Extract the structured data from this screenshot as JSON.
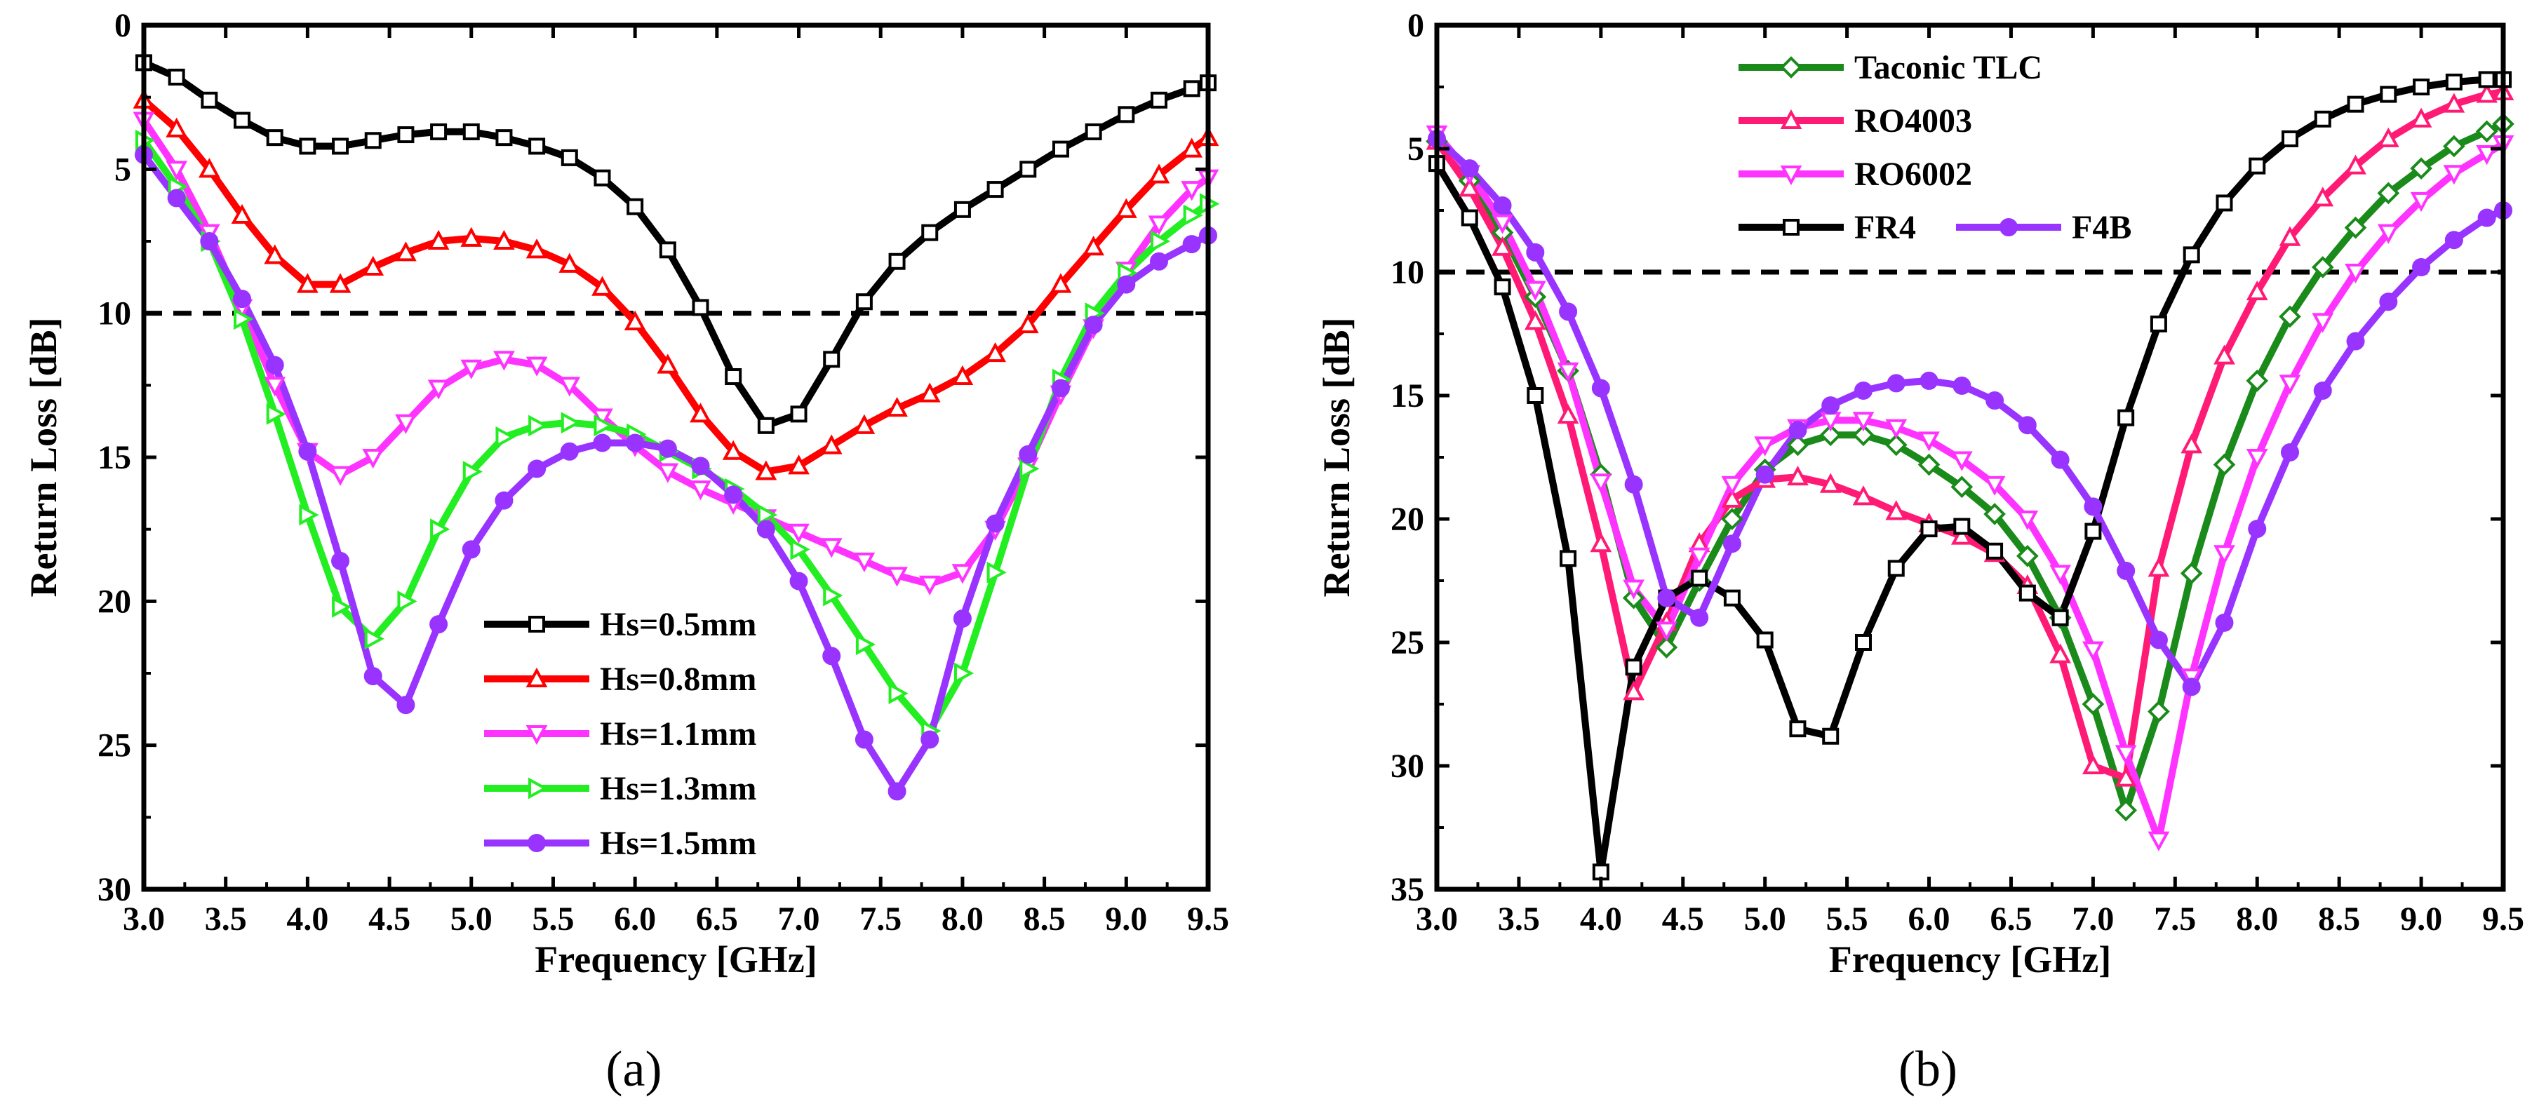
{
  "chart_data": [
    {
      "type": "line",
      "caption": "(a)",
      "xlabel": "Frequency [GHz]",
      "ylabel": "Return Loss [dB]",
      "xlim": [
        3.0,
        9.5
      ],
      "ylim": [
        0,
        30
      ],
      "y_inverted": true,
      "xticks": [
        "3.0",
        "3.5",
        "4.0",
        "4.5",
        "5.0",
        "5.5",
        "6.0",
        "6.5",
        "7.0",
        "7.5",
        "8.0",
        "8.5",
        "9.0",
        "9.5"
      ],
      "yticks": [
        "0",
        "5",
        "10",
        "15",
        "20",
        "25",
        "30"
      ],
      "reference_line": {
        "y": 10,
        "style": "dashed"
      },
      "legend_position": "bottom-center",
      "series": [
        {
          "name": "Hs=0.5mm",
          "color": "#000000",
          "marker": "square",
          "x": [
            3.0,
            3.2,
            3.4,
            3.6,
            3.8,
            4.0,
            4.2,
            4.4,
            4.6,
            4.8,
            5.0,
            5.2,
            5.4,
            5.6,
            5.8,
            6.0,
            6.2,
            6.4,
            6.6,
            6.8,
            7.0,
            7.2,
            7.4,
            7.6,
            7.8,
            8.0,
            8.2,
            8.4,
            8.6,
            8.8,
            9.0,
            9.2,
            9.4,
            9.5
          ],
          "y": [
            1.3,
            1.8,
            2.6,
            3.3,
            3.9,
            4.2,
            4.2,
            4.0,
            3.8,
            3.7,
            3.7,
            3.9,
            4.2,
            4.6,
            5.3,
            6.3,
            7.8,
            9.8,
            12.2,
            13.9,
            13.5,
            11.6,
            9.6,
            8.2,
            7.2,
            6.4,
            5.7,
            5.0,
            4.3,
            3.7,
            3.1,
            2.6,
            2.2,
            2.0
          ]
        },
        {
          "name": "Hs=0.8mm",
          "color": "#ff0000",
          "marker": "triangle-up",
          "x": [
            3.0,
            3.2,
            3.4,
            3.6,
            3.8,
            4.0,
            4.2,
            4.4,
            4.6,
            4.8,
            5.0,
            5.2,
            5.4,
            5.6,
            5.8,
            6.0,
            6.2,
            6.4,
            6.6,
            6.8,
            7.0,
            7.2,
            7.4,
            7.6,
            7.8,
            8.0,
            8.2,
            8.4,
            8.6,
            8.8,
            9.0,
            9.2,
            9.4,
            9.5
          ],
          "y": [
            2.6,
            3.6,
            5.0,
            6.6,
            8.0,
            9.0,
            9.0,
            8.4,
            7.9,
            7.5,
            7.4,
            7.5,
            7.8,
            8.3,
            9.1,
            10.3,
            11.8,
            13.5,
            14.8,
            15.5,
            15.3,
            14.6,
            13.9,
            13.3,
            12.8,
            12.2,
            11.4,
            10.4,
            9.0,
            7.7,
            6.4,
            5.2,
            4.3,
            3.9
          ]
        },
        {
          "name": "Hs=1.1mm",
          "color": "#ff33ff",
          "marker": "triangle-down",
          "x": [
            3.0,
            3.2,
            3.4,
            3.6,
            3.8,
            4.0,
            4.2,
            4.4,
            4.6,
            4.8,
            5.0,
            5.2,
            5.4,
            5.6,
            5.8,
            6.0,
            6.2,
            6.4,
            6.6,
            6.8,
            7.0,
            7.2,
            7.4,
            7.6,
            7.8,
            8.0,
            8.2,
            8.4,
            8.6,
            8.8,
            9.0,
            9.2,
            9.4,
            9.5
          ],
          "y": [
            3.3,
            5.0,
            7.2,
            9.8,
            12.5,
            14.8,
            15.6,
            15.0,
            13.8,
            12.6,
            11.9,
            11.6,
            11.8,
            12.5,
            13.6,
            14.6,
            15.5,
            16.1,
            16.6,
            17.1,
            17.6,
            18.1,
            18.6,
            19.1,
            19.4,
            19.0,
            17.5,
            15.3,
            12.8,
            10.5,
            8.5,
            6.9,
            5.7,
            5.3
          ]
        },
        {
          "name": "Hs=1.3mm",
          "color": "#22ee22",
          "marker": "triangle-right",
          "x": [
            3.0,
            3.2,
            3.4,
            3.6,
            3.8,
            4.0,
            4.2,
            4.4,
            4.6,
            4.8,
            5.0,
            5.2,
            5.4,
            5.6,
            5.8,
            6.0,
            6.2,
            6.4,
            6.6,
            6.8,
            7.0,
            7.2,
            7.4,
            7.6,
            7.8,
            8.0,
            8.2,
            8.4,
            8.6,
            8.8,
            9.0,
            9.2,
            9.4,
            9.5
          ],
          "y": [
            4.0,
            5.6,
            7.5,
            10.2,
            13.5,
            17.0,
            20.2,
            21.3,
            20.0,
            17.5,
            15.5,
            14.3,
            13.9,
            13.8,
            13.9,
            14.2,
            14.8,
            15.4,
            16.1,
            17.0,
            18.2,
            19.8,
            21.5,
            23.2,
            24.5,
            22.5,
            19.0,
            15.4,
            12.3,
            10.0,
            8.6,
            7.5,
            6.6,
            6.2
          ]
        },
        {
          "name": "Hs=1.5mm",
          "color": "#9933ff",
          "marker": "circle",
          "x": [
            3.0,
            3.2,
            3.4,
            3.6,
            3.8,
            4.0,
            4.2,
            4.4,
            4.6,
            4.8,
            5.0,
            5.2,
            5.4,
            5.6,
            5.8,
            6.0,
            6.2,
            6.4,
            6.6,
            6.8,
            7.0,
            7.2,
            7.4,
            7.6,
            7.8,
            8.0,
            8.2,
            8.4,
            8.6,
            8.8,
            9.0,
            9.2,
            9.4,
            9.5
          ],
          "y": [
            4.5,
            6.0,
            7.5,
            9.5,
            11.8,
            14.8,
            18.6,
            22.6,
            23.6,
            20.8,
            18.2,
            16.5,
            15.4,
            14.8,
            14.5,
            14.5,
            14.7,
            15.3,
            16.3,
            17.5,
            19.3,
            21.9,
            24.8,
            26.6,
            24.8,
            20.6,
            17.3,
            14.9,
            12.6,
            10.4,
            9.0,
            8.2,
            7.6,
            7.3
          ]
        }
      ]
    },
    {
      "type": "line",
      "caption": "(b)",
      "xlabel": "Frequency [GHz]",
      "ylabel": "Return Loss [dB]",
      "xlim": [
        3.0,
        9.5
      ],
      "ylim": [
        0,
        35
      ],
      "y_inverted": true,
      "xticks": [
        "3.0",
        "3.5",
        "4.0",
        "4.5",
        "5.0",
        "5.5",
        "6.0",
        "6.5",
        "7.0",
        "7.5",
        "8.0",
        "8.5",
        "9.0",
        "9.5"
      ],
      "yticks": [
        "0",
        "5",
        "10",
        "15",
        "20",
        "25",
        "30",
        "35"
      ],
      "reference_line": {
        "y": 10,
        "style": "dashed"
      },
      "legend_position": "top-left",
      "series": [
        {
          "name": "Taconic TLC",
          "color": "#1a8a1a",
          "marker": "diamond",
          "x": [
            3.0,
            3.2,
            3.4,
            3.6,
            3.8,
            4.0,
            4.2,
            4.4,
            4.6,
            4.8,
            5.0,
            5.2,
            5.4,
            5.6,
            5.8,
            6.0,
            6.2,
            6.4,
            6.6,
            6.8,
            7.0,
            7.2,
            7.4,
            7.6,
            7.8,
            8.0,
            8.2,
            8.4,
            8.6,
            8.8,
            9.0,
            9.2,
            9.4,
            9.5
          ],
          "y": [
            4.7,
            6.3,
            8.4,
            11.0,
            14.0,
            18.2,
            23.2,
            25.2,
            22.5,
            20.0,
            18.0,
            17.0,
            16.6,
            16.6,
            17.0,
            17.8,
            18.7,
            19.8,
            21.5,
            24.0,
            27.5,
            31.8,
            27.8,
            22.2,
            17.8,
            14.4,
            11.8,
            9.8,
            8.2,
            6.8,
            5.8,
            4.9,
            4.3,
            4.0
          ]
        },
        {
          "name": "RO4003",
          "color": "#ff1a75",
          "marker": "triangle-up",
          "x": [
            3.0,
            3.2,
            3.4,
            3.6,
            3.8,
            4.0,
            4.2,
            4.4,
            4.6,
            4.8,
            5.0,
            5.2,
            5.4,
            5.6,
            5.8,
            6.0,
            6.2,
            6.4,
            6.6,
            6.8,
            7.0,
            7.2,
            7.4,
            7.6,
            7.8,
            8.0,
            8.2,
            8.4,
            8.6,
            8.8,
            9.0,
            9.2,
            9.4,
            9.5
          ],
          "y": [
            4.7,
            6.6,
            9.0,
            12.0,
            15.8,
            21.0,
            27.0,
            24.2,
            21.0,
            19.2,
            18.4,
            18.3,
            18.6,
            19.1,
            19.7,
            20.2,
            20.7,
            21.4,
            22.7,
            25.5,
            30.0,
            30.5,
            22.0,
            17.0,
            13.4,
            10.8,
            8.6,
            7.0,
            5.7,
            4.6,
            3.8,
            3.2,
            2.8,
            2.7
          ]
        },
        {
          "name": "RO6002",
          "color": "#ff33ff",
          "marker": "triangle-down",
          "x": [
            3.0,
            3.2,
            3.4,
            3.6,
            3.8,
            4.0,
            4.2,
            4.4,
            4.6,
            4.8,
            5.0,
            5.2,
            5.4,
            5.6,
            5.8,
            6.0,
            6.2,
            6.4,
            6.6,
            6.8,
            7.0,
            7.2,
            7.4,
            7.6,
            7.8,
            8.0,
            8.2,
            8.4,
            8.6,
            8.8,
            9.0,
            9.2,
            9.4,
            9.5
          ],
          "y": [
            4.4,
            6.0,
            8.0,
            10.7,
            14.0,
            18.5,
            22.8,
            24.5,
            21.5,
            18.6,
            17.0,
            16.3,
            16.0,
            16.0,
            16.3,
            16.8,
            17.6,
            18.6,
            20.0,
            22.2,
            25.3,
            29.5,
            33.0,
            26.4,
            21.4,
            17.5,
            14.5,
            12.0,
            10.0,
            8.4,
            7.1,
            6.0,
            5.2,
            4.8
          ]
        },
        {
          "name": "FR4",
          "color": "#000000",
          "marker": "square",
          "x": [
            3.0,
            3.2,
            3.4,
            3.6,
            3.8,
            4.0,
            4.2,
            4.4,
            4.6,
            4.8,
            5.0,
            5.2,
            5.4,
            5.6,
            5.8,
            6.0,
            6.2,
            6.4,
            6.6,
            6.8,
            7.0,
            7.2,
            7.4,
            7.6,
            7.8,
            8.0,
            8.2,
            8.4,
            8.6,
            8.8,
            9.0,
            9.2,
            9.4,
            9.5
          ],
          "y": [
            5.6,
            7.8,
            10.6,
            15.0,
            21.6,
            34.3,
            26.0,
            23.2,
            22.4,
            23.2,
            24.9,
            28.5,
            28.8,
            25.0,
            22.0,
            20.4,
            20.3,
            21.3,
            23.0,
            24.0,
            20.5,
            15.9,
            12.1,
            9.3,
            7.2,
            5.7,
            4.6,
            3.8,
            3.2,
            2.8,
            2.5,
            2.3,
            2.2,
            2.2
          ]
        },
        {
          "name": "F4B",
          "color": "#9933ff",
          "marker": "circle",
          "x": [
            3.0,
            3.2,
            3.4,
            3.6,
            3.8,
            4.0,
            4.2,
            4.4,
            4.6,
            4.8,
            5.0,
            5.2,
            5.4,
            5.6,
            5.8,
            6.0,
            6.2,
            6.4,
            6.6,
            6.8,
            7.0,
            7.2,
            7.4,
            7.6,
            7.8,
            8.0,
            8.2,
            8.4,
            8.6,
            8.8,
            9.0,
            9.2,
            9.4,
            9.5
          ],
          "y": [
            4.6,
            5.8,
            7.3,
            9.2,
            11.6,
            14.7,
            18.6,
            23.2,
            24.0,
            21.0,
            18.2,
            16.4,
            15.4,
            14.8,
            14.5,
            14.4,
            14.6,
            15.2,
            16.2,
            17.6,
            19.5,
            22.1,
            24.9,
            26.8,
            24.2,
            20.4,
            17.3,
            14.8,
            12.8,
            11.2,
            9.8,
            8.7,
            7.8,
            7.5
          ]
        }
      ]
    }
  ]
}
